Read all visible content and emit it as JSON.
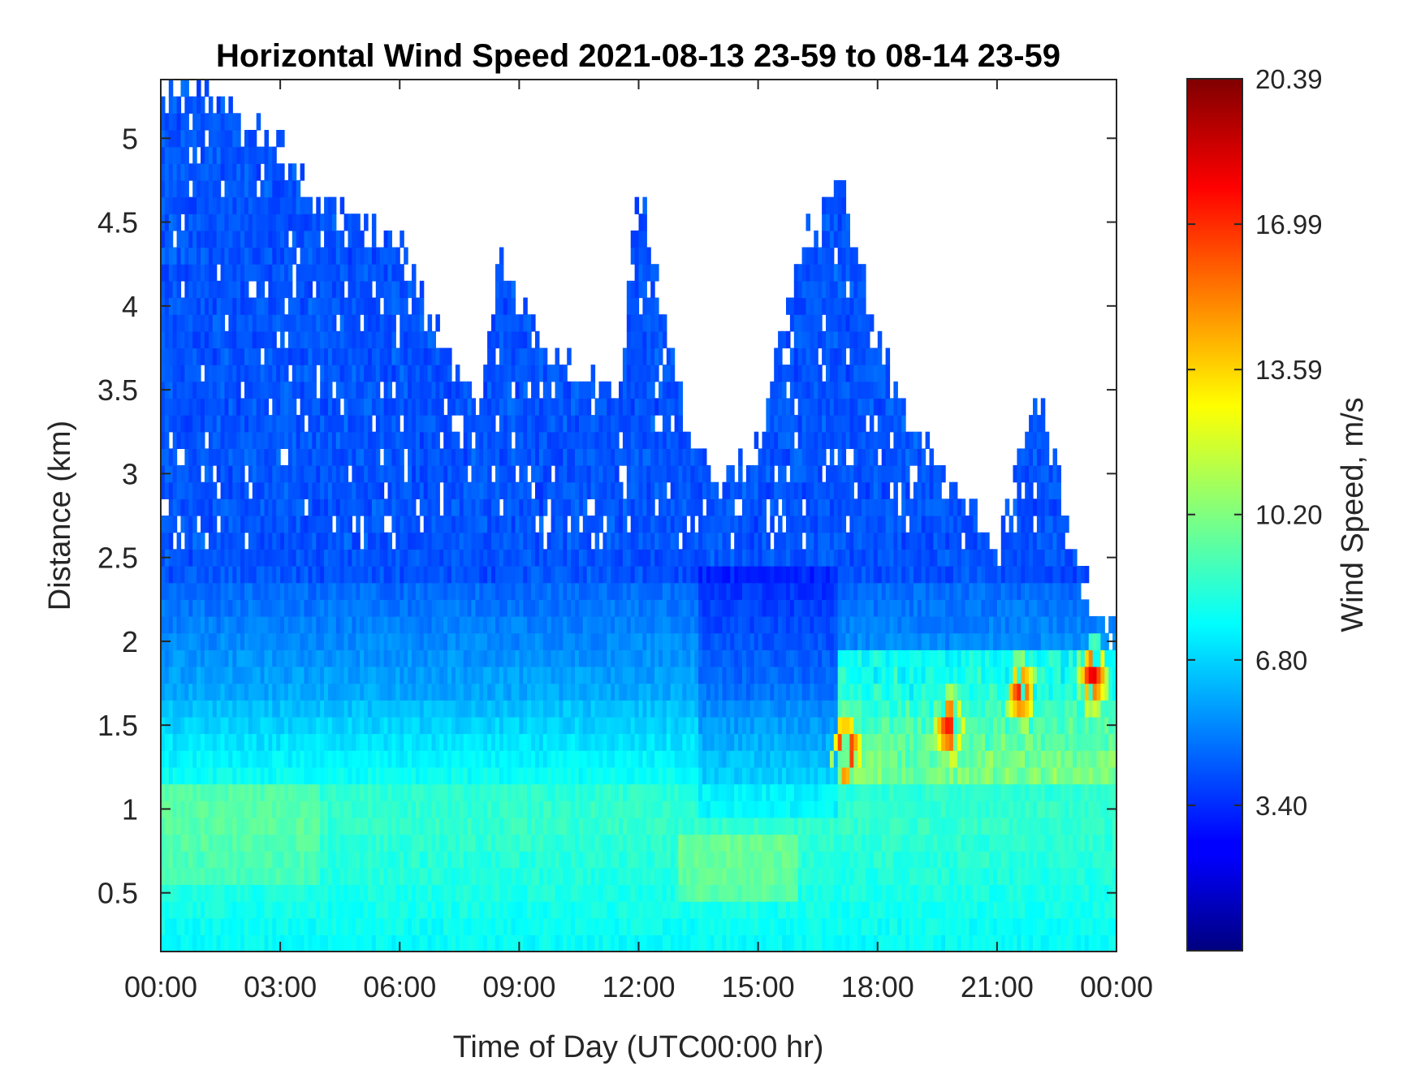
{
  "chart_data": {
    "type": "heatmap",
    "title": "Horizontal Wind Speed 2021-08-13 23-59 to 08-14 23-59",
    "xlabel": "Time of Day (UTC00:00 hr)",
    "ylabel": "Distance (km)",
    "xlim": [
      0,
      24
    ],
    "ylim": [
      0.15,
      5.35
    ],
    "x_ticks": [
      0,
      3,
      6,
      9,
      12,
      15,
      18,
      21,
      24
    ],
    "x_tick_labels": [
      "00:00",
      "03:00",
      "06:00",
      "09:00",
      "12:00",
      "15:00",
      "18:00",
      "21:00",
      "00:00"
    ],
    "y_ticks": [
      0.5,
      1,
      1.5,
      2,
      2.5,
      3,
      3.5,
      4,
      4.5,
      5
    ],
    "y_tick_labels": [
      "0.5",
      "1",
      "1.5",
      "2",
      "2.5",
      "3",
      "3.5",
      "4",
      "4.5",
      "5"
    ],
    "colorbar": {
      "label": "Wind Speed, m/s",
      "range": [
        0,
        20.39
      ],
      "colormap": "jet",
      "ticks": [
        3.4,
        6.8,
        10.2,
        13.59,
        16.99,
        20.39
      ],
      "tick_labels": [
        "3.40",
        "6.80",
        "10.20",
        "13.59",
        "16.99",
        "20.39"
      ]
    },
    "data_top_km": [
      [
        0,
        5.3
      ],
      [
        1,
        5.3
      ],
      [
        2,
        5.1
      ],
      [
        3,
        4.9
      ],
      [
        4,
        4.6
      ],
      [
        5,
        4.5
      ],
      [
        6,
        4.4
      ],
      [
        7,
        3.75
      ],
      [
        8,
        3.45
      ],
      [
        8.5,
        4.3
      ],
      [
        9.5,
        3.75
      ],
      [
        10.5,
        3.6
      ],
      [
        11.5,
        3.5
      ],
      [
        12,
        4.7
      ],
      [
        13,
        3.5
      ],
      [
        14,
        2.85
      ],
      [
        15,
        3.15
      ],
      [
        16,
        4.3
      ],
      [
        17,
        4.8
      ],
      [
        18,
        3.75
      ],
      [
        19,
        3.2
      ],
      [
        20,
        2.9
      ],
      [
        21,
        2.55
      ],
      [
        22,
        3.55
      ],
      [
        23,
        2.4
      ],
      [
        24,
        2.0
      ]
    ],
    "speed_profile_note": "",
    "high_speed_cores": [
      {
        "time": 17.2,
        "distance_km": 1.35,
        "value": 18.5
      },
      {
        "time": 19.8,
        "distance_km": 1.5,
        "value": 17.5
      },
      {
        "time": 21.6,
        "distance_km": 1.7,
        "value": 17.0
      },
      {
        "time": 23.4,
        "distance_km": 1.8,
        "value": 18.0
      }
    ],
    "colors": {
      "axis": "#262626",
      "background": "#ffffff"
    }
  }
}
